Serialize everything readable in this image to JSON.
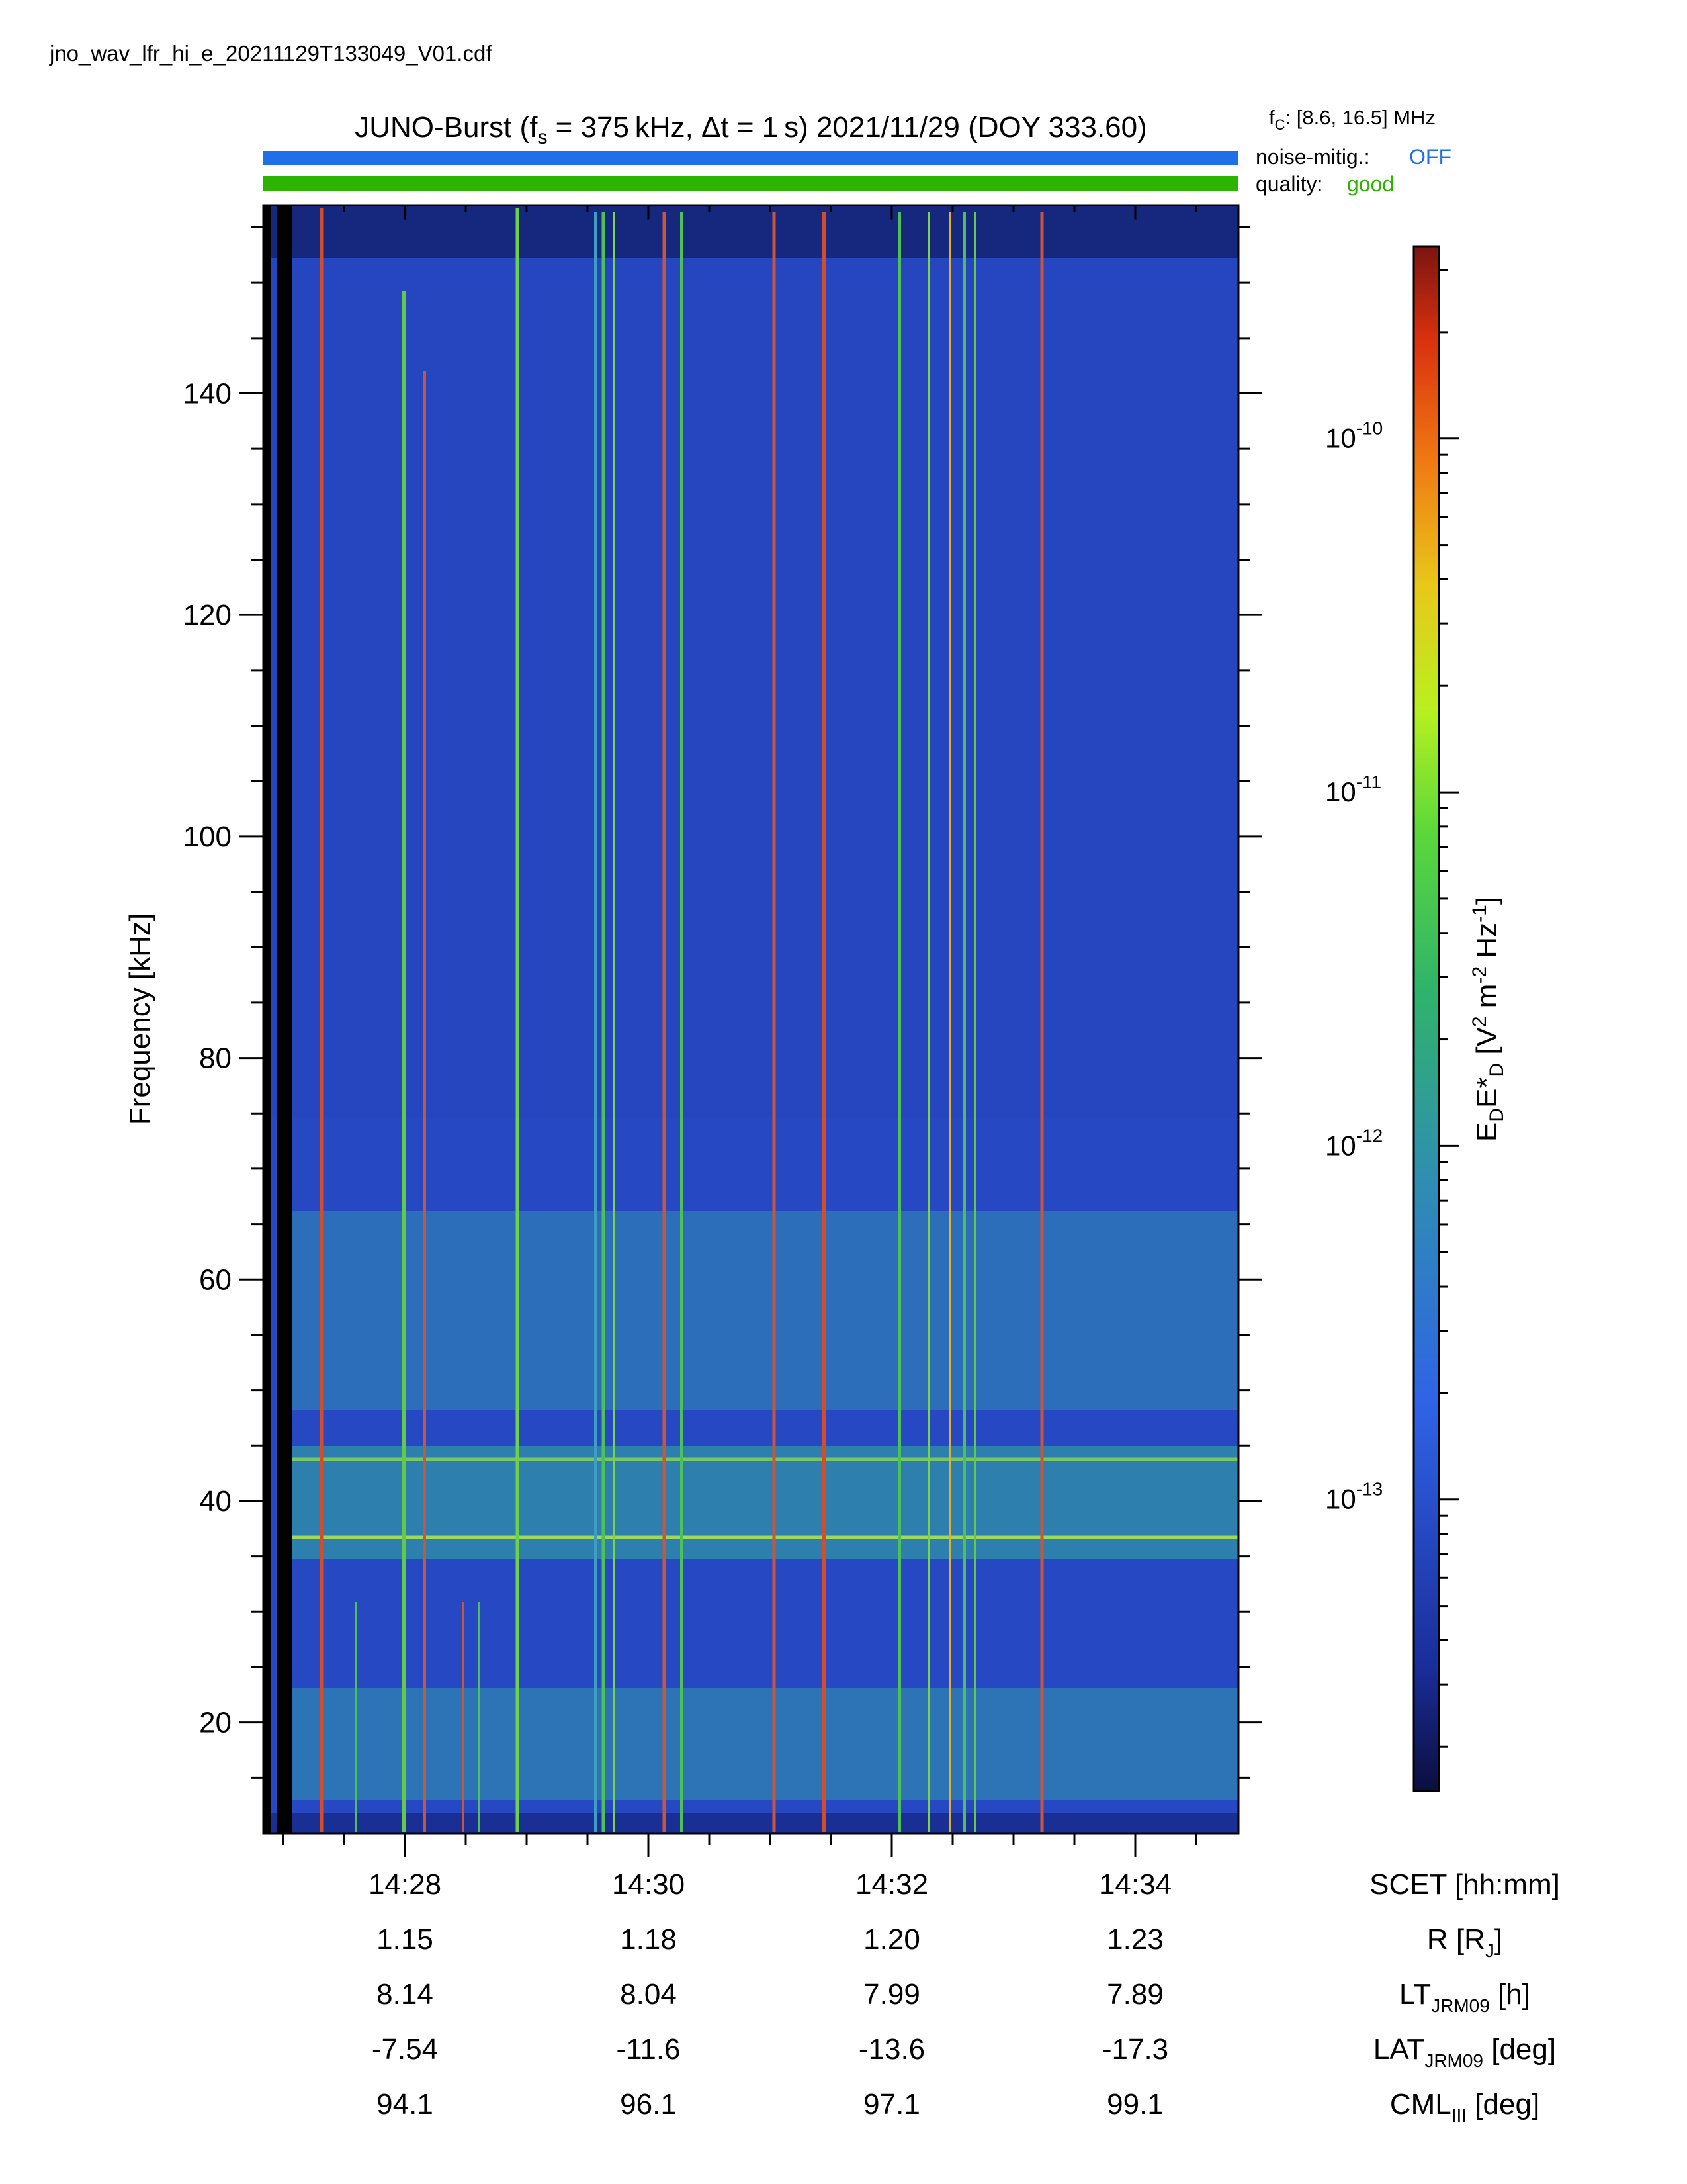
{
  "filename": "jno_wav_lfr_hi_e_20211129T133049_V01.cdf",
  "header": {
    "title_prefix": "JUNO-Burst (f",
    "title_sub": "s",
    "title_rest": " = 375 kHz, Δt = 1 s)  2021/11/29 (DOY 333.60)",
    "fc_prefix": "f",
    "fc_sub": "C",
    "fc_rest": ": [8.6, 16.5] MHz",
    "noise_label": "noise-mitig.:",
    "noise_value": "OFF",
    "quality_label": "quality:",
    "quality_value": "good",
    "noise_color": "#1f6fe8",
    "quality_color": "#2db400"
  },
  "chart_data": {
    "type": "heatmap",
    "ylabel": "Frequency [kHz]",
    "ylim": [
      10,
      157
    ],
    "y_ticks": [
      20,
      40,
      60,
      80,
      100,
      120,
      140
    ],
    "x_ticks": [
      "14:28",
      "14:30",
      "14:32",
      "14:34"
    ],
    "colorbar": {
      "label_main": "E",
      "label_sub1": "D",
      "label_mid": "E*",
      "label_sub2": "D",
      "label_units_pre": " [V",
      "label_sup1": "2",
      "label_units_mid": " m",
      "label_sup2": "-2",
      "label_units_mid2": " Hz",
      "label_sup3": "-1",
      "label_units_end": "]",
      "scale": "log",
      "range": [
        1.5e-14,
        3.5e-10
      ],
      "ticks": [
        {
          "value": 1e-10,
          "base": "10",
          "exp": "-10"
        },
        {
          "value": 1e-11,
          "base": "10",
          "exp": "-11"
        },
        {
          "value": 1e-12,
          "base": "10",
          "exp": "-12"
        },
        {
          "value": 1e-13,
          "base": "10",
          "exp": "-13"
        }
      ]
    },
    "ephemeris": {
      "rows": [
        {
          "label_pre": "SCET [hh:mm]",
          "label_sub": "",
          "label_post": ""
        },
        {
          "label_pre": "R [R",
          "label_sub": "J",
          "label_post": "]"
        },
        {
          "label_pre": "LT",
          "label_sub": "JRM09",
          "label_post": " [h]"
        },
        {
          "label_pre": "LAT",
          "label_sub": "JRM09",
          "label_post": " [deg]"
        },
        {
          "label_pre": "CML",
          "label_sub": "III",
          "label_post": " [deg]"
        }
      ],
      "values": [
        [
          "14:28",
          "14:30",
          "14:32",
          "14:34"
        ],
        [
          "1.15",
          "1.18",
          "1.20",
          "1.23"
        ],
        [
          "8.14",
          "8.04",
          "7.99",
          "7.89"
        ],
        [
          "-7.54",
          "-11.6",
          "-13.6",
          "-17.3"
        ],
        [
          "94.1",
          "96.1",
          "97.1",
          "99.1"
        ]
      ]
    }
  }
}
